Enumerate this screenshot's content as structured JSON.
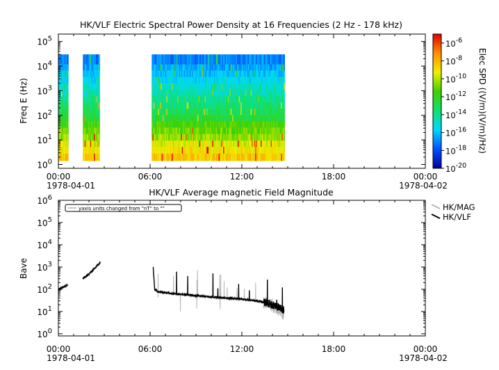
{
  "chart_data": [
    {
      "type": "heatmap",
      "title": "HK/VLF  Electric Spectral Power Density at 16 Frequencies (2 Hz - 178 kHz)",
      "ylabel": "Freq E (Hz)",
      "xlabel": "",
      "y_scale": "log",
      "ylim": [
        0.7,
        200000
      ],
      "y_ticks": [
        {
          "base": "10",
          "exp": "0"
        },
        {
          "base": "10",
          "exp": "1"
        },
        {
          "base": "10",
          "exp": "2"
        },
        {
          "base": "10",
          "exp": "3"
        },
        {
          "base": "10",
          "exp": "4"
        },
        {
          "base": "10",
          "exp": "5"
        }
      ],
      "x_ticks": [
        "00:00",
        "06:00",
        "12:00",
        "18:00",
        "00:00"
      ],
      "x_date_labels": [
        "1978-04-01",
        "1978-04-02"
      ],
      "colorbar": {
        "label": "Elec SPD ((V/m)(V/m)/Hz)",
        "scale": "log",
        "range": [
          1e-20,
          1e-05
        ],
        "ticks": [
          {
            "base": "10",
            "exp": "-6"
          },
          {
            "base": "10",
            "exp": "-8"
          },
          {
            "base": "10",
            "exp": "-10"
          },
          {
            "base": "10",
            "exp": "-12"
          },
          {
            "base": "10",
            "exp": "-14"
          },
          {
            "base": "10",
            "exp": "-16"
          },
          {
            "base": "10",
            "exp": "-18"
          },
          {
            "base": "10",
            "exp": "-20"
          }
        ],
        "colors": [
          "#00009a",
          "#0050ff",
          "#00d8ff",
          "#10e070",
          "#40d000",
          "#f0f000",
          "#ff9000",
          "#e00000"
        ]
      },
      "time_segments_hours": [
        [
          0.0,
          0.65
        ],
        [
          1.6,
          2.7
        ],
        [
          6.1,
          14.8
        ]
      ],
      "frequency_bands_hz": [
        2,
        4,
        7,
        13,
        24,
        43,
        78,
        140,
        250,
        460,
        820,
        1500,
        2700,
        5000,
        9000,
        16000
      ],
      "typical_log10_spd_by_band": [
        -8.5,
        -9,
        -9.5,
        -10.5,
        -11,
        -11.5,
        -12.5,
        -13,
        -13.5,
        -14,
        -14.5,
        -15,
        -15.5,
        -16,
        -16.5,
        -17
      ]
    },
    {
      "type": "line",
      "title": "HK/VLF  Average magnetic Field Magnitude",
      "ylabel": "Bave",
      "xlabel": "",
      "y_scale": "log",
      "ylim": [
        0.8,
        1000000
      ],
      "y_ticks": [
        {
          "base": "10",
          "exp": "0"
        },
        {
          "base": "10",
          "exp": "1"
        },
        {
          "base": "10",
          "exp": "2"
        },
        {
          "base": "10",
          "exp": "3"
        },
        {
          "base": "10",
          "exp": "4"
        },
        {
          "base": "10",
          "exp": "5"
        },
        {
          "base": "10",
          "exp": "6"
        }
      ],
      "x_ticks": [
        "00:00",
        "06:00",
        "12:00",
        "18:00",
        "00:00"
      ],
      "x_date_labels": [
        "1978-04-01",
        "1978-04-02"
      ],
      "annotation": "yaxis units changed from \"nT\" to \"\"",
      "legend_position": "right",
      "series": [
        {
          "name": "HK/MAG",
          "color": "#b4b4b4",
          "segments": [
            {
              "x_hours": [
                0.0,
                0.3,
                0.6
              ],
              "y": [
                100,
                125,
                155
              ]
            },
            {
              "x_hours": [
                1.6,
                1.9,
                2.2,
                2.5,
                2.75
              ],
              "y": [
                300,
                420,
                650,
                1100,
                1600
              ]
            },
            {
              "x_hours": [
                6.2,
                6.3,
                6.5,
                7.0,
                8.0,
                9.0,
                10.0,
                11.0,
                12.0,
                13.0,
                13.6,
                14.0,
                14.4,
                14.75
              ],
              "y": [
                600,
                100,
                78,
                70,
                60,
                52,
                45,
                40,
                36,
                30,
                25,
                18,
                12,
                8
              ]
            }
          ]
        },
        {
          "name": "HK/VLF",
          "color": "#000000",
          "segments": [
            {
              "x_hours": [
                0.0,
                0.3,
                0.6
              ],
              "y": [
                100,
                125,
                155
              ]
            },
            {
              "x_hours": [
                1.6,
                1.9,
                2.2,
                2.5,
                2.75
              ],
              "y": [
                300,
                420,
                650,
                1100,
                1600
              ]
            },
            {
              "x_hours": [
                6.2,
                6.3,
                6.5,
                7.0,
                8.0,
                9.0,
                10.0,
                11.0,
                12.0,
                13.0,
                13.6,
                14.0,
                14.4,
                14.75
              ],
              "y": [
                1000,
                100,
                78,
                70,
                60,
                52,
                45,
                40,
                36,
                30,
                25,
                20,
                15,
                12
              ]
            }
          ]
        }
      ]
    }
  ]
}
